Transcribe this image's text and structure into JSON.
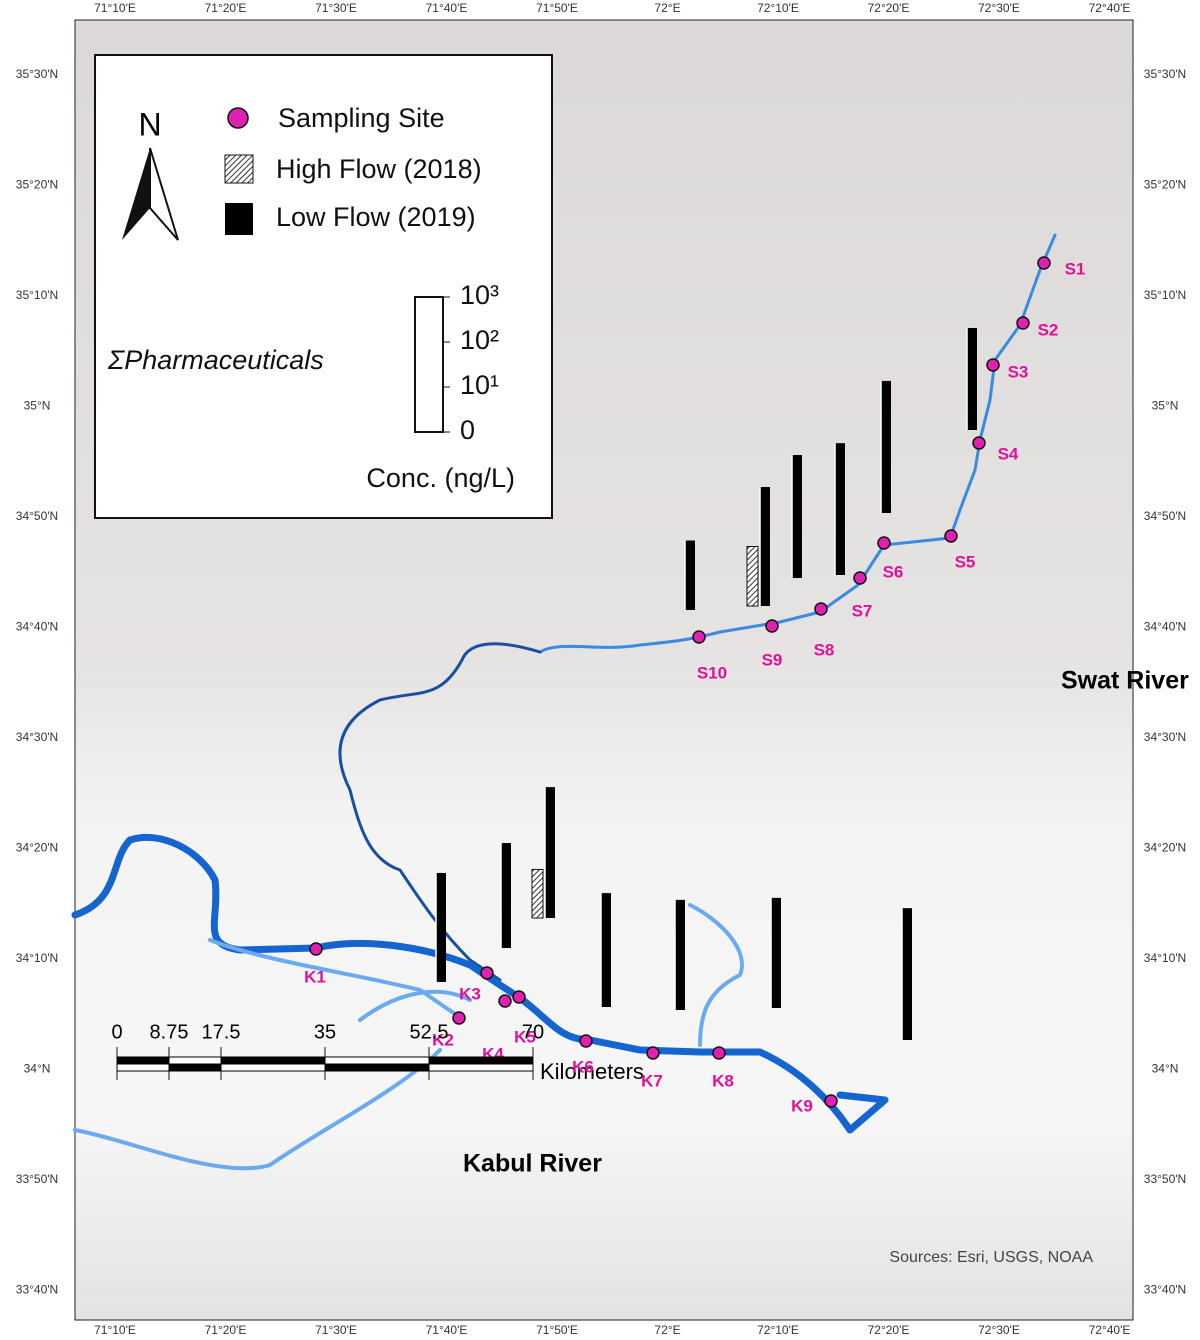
{
  "map": {
    "longitude_labels": [
      "71°10'E",
      "71°20'E",
      "71°30'E",
      "71°40'E",
      "71°50'E",
      "72°E",
      "72°10'E",
      "72°20'E",
      "72°30'E",
      "72°40'E"
    ],
    "latitude_labels": [
      "35°30'N",
      "35°20'N",
      "35°10'N",
      "35°N",
      "34°50'N",
      "34°40'N",
      "34°30'N",
      "34°20'N",
      "34°10'N",
      "34°N",
      "33°50'N",
      "33°40'N"
    ],
    "legend": {
      "north": "N",
      "items": [
        "Sampling Site",
        "High Flow (2018)",
        "Low Flow (2019)"
      ],
      "measure": "ΣPharmaceuticals",
      "scale_ticks": [
        {
          "value": 0,
          "label": "0"
        },
        {
          "value": 10,
          "label": "10¹"
        },
        {
          "value": 100,
          "label": "10²"
        },
        {
          "value": 1000,
          "label": "10³"
        }
      ],
      "unit": "Conc. (ng/L)"
    },
    "rivers": [
      "Swat River",
      "Kabul River"
    ],
    "sites": [
      "S1",
      "S2",
      "S3",
      "S4",
      "S5",
      "S6",
      "S7",
      "S8",
      "S9",
      "S10",
      "K1",
      "K2",
      "K3",
      "K4",
      "K5",
      "K6",
      "K7",
      "K8",
      "K9"
    ],
    "bars": [
      {
        "low_flow": 35
      },
      {
        "low_flow": 440,
        "high_flow": 21
      },
      {
        "low_flow": 540
      },
      {
        "low_flow": 850
      },
      {
        "low_flow": 860
      },
      {
        "low_flow": 185
      },
      {
        "low_flow": 265
      },
      {
        "low_flow": 215
      },
      {
        "low_flow": 810,
        "high_flow": 12
      },
      {
        "low_flow": 340
      },
      {
        "low_flow": 280
      },
      {
        "low_flow": 280
      },
      {
        "low_flow": 850
      }
    ],
    "scale_bar": {
      "ticks": [
        0,
        8.75,
        17.5,
        35,
        52.5,
        70
      ],
      "unit": "Kilometers"
    },
    "sources": "Sources: Esri, USGS, NOAA"
  }
}
